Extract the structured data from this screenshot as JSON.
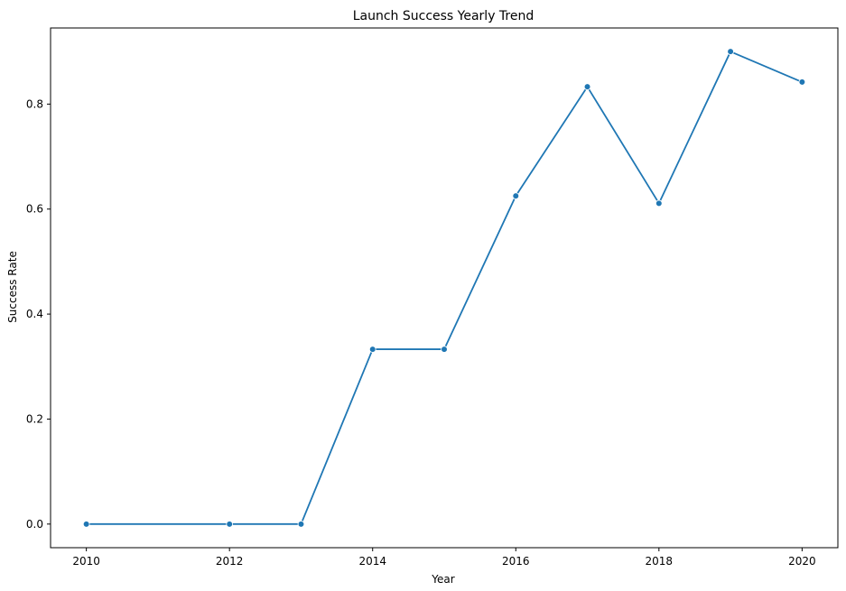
{
  "chart_data": {
    "type": "line",
    "title": "Launch Success Yearly Trend",
    "xlabel": "Year",
    "ylabel": "Success Rate",
    "x": [
      2010,
      2012,
      2013,
      2014,
      2015,
      2016,
      2017,
      2018,
      2019,
      2020
    ],
    "series": [
      {
        "values": [
          0.0,
          0.0,
          0.0,
          0.333,
          0.333,
          0.625,
          0.833,
          0.611,
          0.9,
          0.842
        ],
        "color": "#1f77b4",
        "marker": "circle"
      }
    ],
    "xlim": [
      2009.5,
      2020.5
    ],
    "ylim": [
      -0.045,
      0.945
    ],
    "xticks": [
      2010,
      2012,
      2014,
      2016,
      2018,
      2020
    ],
    "xtick_labels": [
      "2010",
      "2012",
      "2014",
      "2016",
      "2018",
      "2020"
    ],
    "yticks": [
      0.0,
      0.2,
      0.4,
      0.6,
      0.8
    ],
    "ytick_labels": [
      "0.0",
      "0.2",
      "0.4",
      "0.6",
      "0.8"
    ],
    "grid": false,
    "legend": false
  }
}
